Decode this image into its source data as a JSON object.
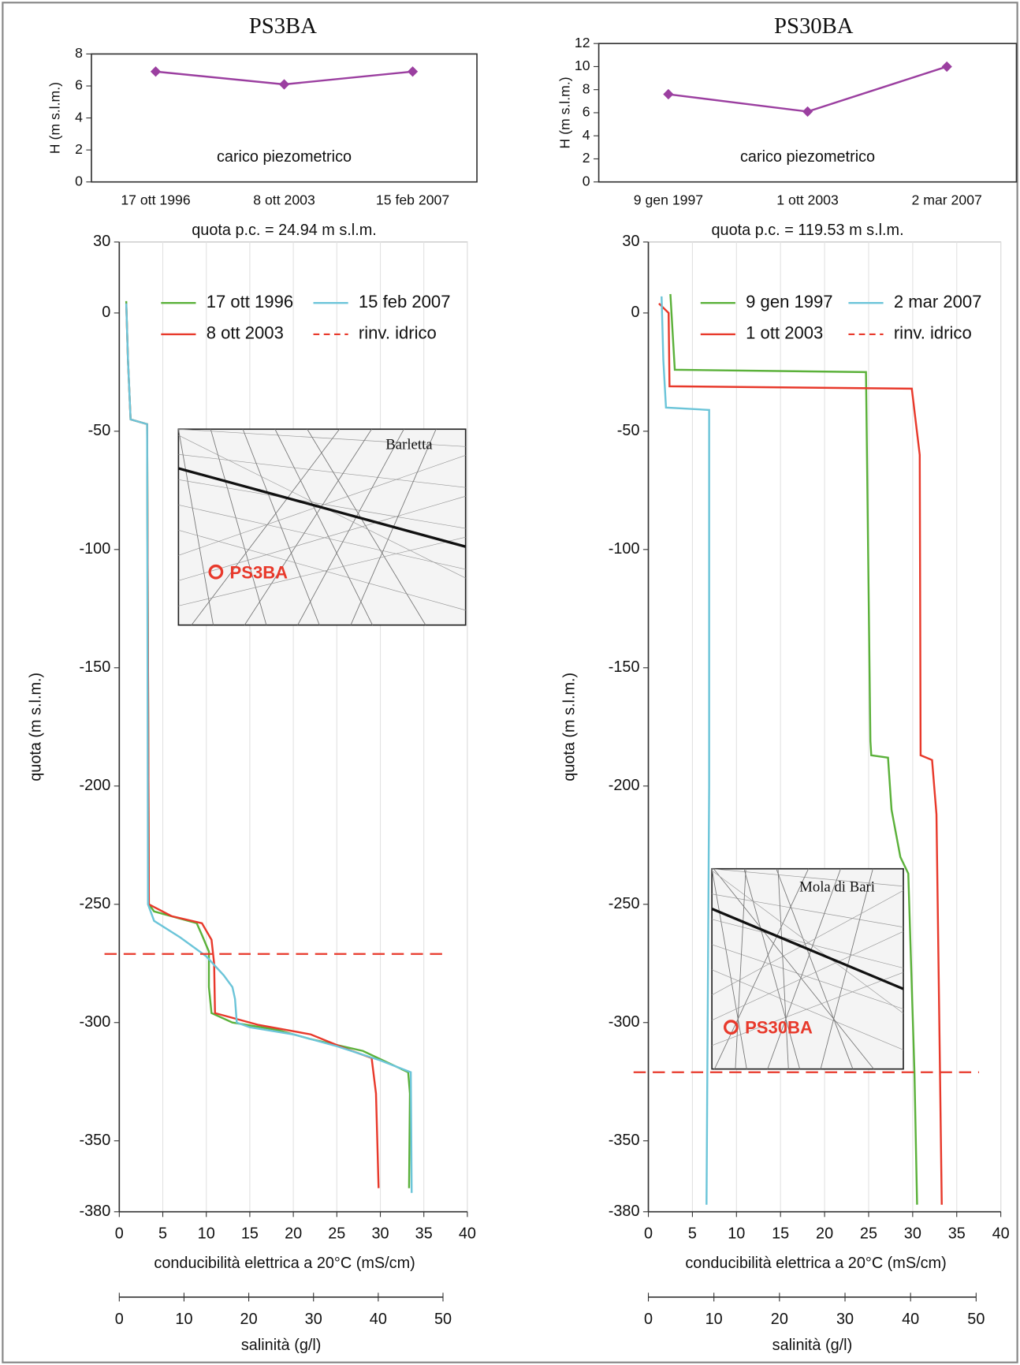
{
  "chart_data": [
    {
      "type": "line",
      "title": "PS3BA",
      "categories": [
        "17 ott 1996",
        "8 ott 2003",
        "15 feb 2007"
      ],
      "values": [
        6.9,
        6.1,
        6.9
      ],
      "color": "#9b3fa0",
      "ylim": [
        0,
        8
      ],
      "yticks": [
        0,
        2,
        4,
        6,
        8
      ],
      "ylabel": "H (m s.l.m.)",
      "annotation": "carico piezometrico",
      "note": "quota p.c. = 24.94 m s.l.m."
    },
    {
      "type": "profile",
      "xlabel": "conducibilità elettrica a 20°C (mS/cm)",
      "ylabel": "quota (m s.l.m.)",
      "xlim": [
        0,
        40
      ],
      "xticks": [
        0,
        5,
        10,
        15,
        20,
        25,
        30,
        35,
        40
      ],
      "ylim": [
        -380,
        30
      ],
      "yticks": [
        30,
        0,
        -50,
        -100,
        -150,
        -200,
        -250,
        -300,
        -350,
        -380
      ],
      "x2lim": [
        0,
        50
      ],
      "x2ticks": [
        0,
        10,
        20,
        30,
        40,
        50
      ],
      "x2label": "salinità (g/l)",
      "grid": true,
      "series": [
        {
          "name": "17 ott 1996",
          "color": "#5bb13a",
          "values": [
            0.8,
            1.0,
            1.3,
            3.2,
            3.4,
            4,
            8.9,
            9.5,
            10.3,
            10.3,
            10.6,
            13,
            18,
            22,
            28,
            33.2,
            33.4,
            33.3
          ],
          "depth": [
            5,
            -20,
            -45,
            -47,
            -250,
            -253,
            -258,
            -263,
            -270,
            -285,
            -296,
            -300,
            -303,
            -307,
            -312,
            -321,
            -330,
            -370
          ]
        },
        {
          "name": "8 ott 2003",
          "color": "#e8392b",
          "values": [
            0.8,
            1.0,
            1.3,
            3.2,
            3.4,
            6,
            9.5,
            10.6,
            10.9,
            11,
            12,
            16,
            22,
            26,
            29,
            29.5,
            29.8
          ],
          "depth": [
            4,
            -20,
            -45,
            -47,
            -250,
            -255,
            -258,
            -265,
            -275,
            -296,
            -297,
            -301,
            -305,
            -311,
            -315,
            -330,
            -370
          ]
        },
        {
          "name": "15 feb 2007",
          "color": "#6cc5d9",
          "values": [
            0.8,
            1.0,
            1.3,
            3.2,
            3.3,
            4,
            7,
            10,
            12,
            13,
            13.3,
            13.5,
            15,
            20,
            25,
            30,
            33.5,
            33.6
          ],
          "depth": [
            4,
            -20,
            -45,
            -47,
            -250,
            -257,
            -264,
            -272,
            -280,
            -285,
            -290,
            -300,
            -302,
            -305,
            -310,
            -316,
            -321,
            -372
          ]
        }
      ],
      "water_table": {
        "name": "rinv. idrico",
        "value": -271,
        "color": "#e8392b"
      },
      "inset": {
        "place": "Barletta",
        "well": "PS3BA"
      }
    },
    {
      "type": "line",
      "title": "PS30BA",
      "categories": [
        "9 gen 1997",
        "1 ott 2003",
        "2 mar 2007"
      ],
      "values": [
        7.6,
        6.1,
        10.0
      ],
      "color": "#9b3fa0",
      "ylim": [
        0,
        12
      ],
      "yticks": [
        0,
        2,
        4,
        6,
        8,
        10,
        12
      ],
      "ylabel": "H (m s.l.m.)",
      "annotation": "carico piezometrico",
      "note": "quota p.c. = 119.53 m s.l.m."
    },
    {
      "type": "profile",
      "xlabel": "conducibilità elettrica a 20°C (mS/cm)",
      "ylabel": "quota (m s.l.m.)",
      "xlim": [
        0,
        40
      ],
      "xticks": [
        0,
        5,
        10,
        15,
        20,
        25,
        30,
        35,
        40
      ],
      "ylim": [
        -380,
        30
      ],
      "yticks": [
        30,
        0,
        -50,
        -100,
        -150,
        -200,
        -250,
        -300,
        -350,
        -380
      ],
      "x2lim": [
        0,
        50
      ],
      "x2ticks": [
        0,
        10,
        20,
        30,
        40,
        50
      ],
      "x2label": "salinità (g/l)",
      "grid": true,
      "series": [
        {
          "name": "9 gen 1997",
          "color": "#5bb13a",
          "values": [
            2.5,
            3.0,
            24.7,
            25.2,
            25.3,
            27.2,
            27.6,
            28.6,
            29.5,
            30.2,
            30.5
          ],
          "depth": [
            8,
            -24,
            -25,
            -181,
            -187,
            -188,
            -210,
            -230,
            -237,
            -321,
            -377
          ]
        },
        {
          "name": "1 ott 2003",
          "color": "#e8392b",
          "values": [
            1.2,
            2.3,
            2.4,
            29.9,
            30.8,
            30.9,
            32.2,
            32.7,
            33.1,
            33.3
          ],
          "depth": [
            4,
            0,
            -31,
            -32,
            -60,
            -187,
            -189,
            -212,
            -321,
            -377
          ]
        },
        {
          "name": "2 mar 2007",
          "color": "#6cc5d9",
          "values": [
            1.5,
            1.7,
            2.0,
            6.9,
            6.9,
            6.6
          ],
          "depth": [
            7,
            -20,
            -40,
            -41,
            -200,
            -377
          ]
        }
      ],
      "water_table": {
        "name": "rinv. idrico",
        "value": -321,
        "color": "#e8392b"
      },
      "inset": {
        "place": "Mola di Bari",
        "well": "PS30BA"
      }
    }
  ]
}
